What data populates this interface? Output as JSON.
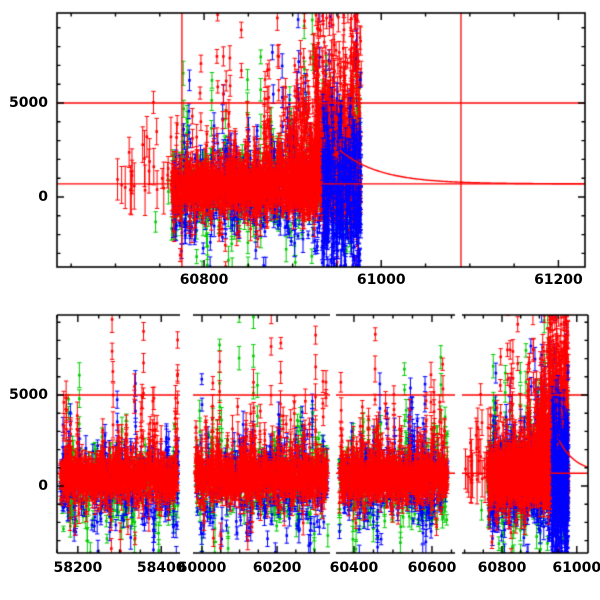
{
  "figure": {
    "background": "#ffffff",
    "frame_color": "#000000",
    "annotation_color": "#ff0000",
    "title": ""
  },
  "series": [
    {
      "name": "band-red",
      "color": "#ff0000",
      "marker": "square-with-errorbar"
    },
    {
      "name": "band-green",
      "color": "#00cc00",
      "marker": "square-with-errorbar"
    },
    {
      "name": "band-blue",
      "color": "#0000ff",
      "marker": "square-with-errorbar"
    }
  ],
  "chart_data": [
    {
      "id": "top-panel",
      "type": "scatter",
      "title": "",
      "xlabel": "",
      "ylabel": "",
      "x_range": [
        60634,
        61230
      ],
      "y_range": [
        -3723,
        9787
      ],
      "x_major_ticks": [
        {
          "value": 60800,
          "label": "60800"
        },
        {
          "value": 61000,
          "label": "61000"
        },
        {
          "value": 61200,
          "label": "61200"
        }
      ],
      "x_minor_step": 50,
      "y_major_ticks": [
        {
          "value": 0,
          "label": "0"
        },
        {
          "value": 5000,
          "label": "5000"
        }
      ],
      "y_minor_step": 1000,
      "h_lines": [
        5000,
        700
      ],
      "v_lines": [
        60775,
        61090
      ],
      "model_curve": {
        "x_start": 60953,
        "y_start": 2500,
        "asymptote": 700,
        "tau": 45,
        "x_end": 61230
      },
      "data_extent": {
        "x_min": 60700,
        "x_max": 60977
      },
      "grid": false,
      "legend": "none"
    },
    {
      "id": "bottom-panel",
      "type": "scatter",
      "title": "",
      "xlabel": "",
      "ylabel": "",
      "y_range": [
        -3681,
        9396
      ],
      "y_major_ticks": [
        {
          "value": 0,
          "label": "0"
        },
        {
          "value": 5000,
          "label": "5000"
        }
      ],
      "y_minor_step": 1000,
      "x_minor_step": 50,
      "h_lines": [
        5000,
        700
      ],
      "model_curve": {
        "x_start": 60953,
        "y_start": 2500,
        "asymptote": 700,
        "tau": 45,
        "x_end": 61030
      },
      "sub_panels": [
        {
          "x_range": [
            58150,
            58445
          ],
          "x_major_ticks": [
            {
              "value": 58200,
              "label": "58200"
            },
            {
              "value": 58400,
              "label": "58400"
            }
          ],
          "dataset": "epoch1"
        },
        {
          "x_range": [
            59976,
            60341
          ],
          "x_major_ticks": [
            {
              "value": 60000,
              "label": "60000"
            },
            {
              "value": 60200,
              "label": "60200"
            }
          ],
          "dataset": "epoch2"
        },
        {
          "x_range": [
            60354,
            60659
          ],
          "x_major_ticks": [
            {
              "value": 60400,
              "label": "60400"
            },
            {
              "value": 60600,
              "label": "60600"
            }
          ],
          "dataset": "epoch3"
        },
        {
          "x_range": [
            60693,
            61030
          ],
          "x_major_ticks": [
            {
              "value": 60800,
              "label": "60800"
            },
            {
              "value": 61000,
              "label": "61000"
            }
          ],
          "dataset": "recent"
        }
      ],
      "grid": false,
      "legend": "none"
    }
  ],
  "noise_model": {
    "comment": "Dense noisy light-curve clouds (3 colour bands with error bars); statistical description used to regenerate the point clouds deterministically.",
    "seed": 42,
    "datasets": {
      "recent": {
        "x_min": 60763,
        "x_max": 60977,
        "sparse_lead": {
          "x_min": 60700,
          "x_max": 60763,
          "n_red": 24,
          "y_min": 100,
          "y_max": 5300,
          "n_green": 6,
          "green_y_mean": -900,
          "green_y_sigma": 900
        },
        "red": {
          "n": 1650,
          "mean": 560,
          "sigma": 620,
          "p_up": 0.045,
          "amp0": 1800,
          "amp_scale": 2000,
          "amp_cap": 9500,
          "p_dn": 0.012,
          "dn0": 800,
          "dn_scale": 1000,
          "flare_x": 60860,
          "flare_boost": 7
        },
        "green": {
          "n": 540,
          "mean": 250,
          "sigma": 950,
          "p_up": 0.05,
          "amp0": 2000,
          "amp_scale": 1700,
          "amp_cap": 9400,
          "p_dn": 0.05,
          "dn0": 1000,
          "dn_scale": 1300,
          "flare_x": 60860,
          "flare_boost": 2
        },
        "blue": {
          "n": 560,
          "mean": 250,
          "sigma": 1000,
          "p_up": 0.05,
          "amp0": 2000,
          "amp_scale": 1700,
          "amp_cap": 9400,
          "p_dn": 0.05,
          "dn0": 1000,
          "dn_scale": 1300,
          "flare_x": 60860,
          "flare_boost": 2.5
        },
        "red_flare_extra": {
          "n": 300,
          "x_min": 60912,
          "x_max": 60974,
          "mean": 2800,
          "sigma": 2300,
          "y_min": -500,
          "y_max": 9600
        },
        "blue_wall": {
          "n": 340,
          "x_min": 60933,
          "x_max": 60977,
          "mean": 300,
          "sigma": 2200,
          "y_min": -3650,
          "y_max": 7200
        }
      },
      "epoch1": {
        "x_min": 58158,
        "x_max": 58440,
        "red": {
          "n": 900,
          "mean": 430,
          "sigma": 580,
          "p_up": 0.04,
          "amp0": 1500,
          "amp_scale": 1800,
          "amp_cap": 9200,
          "p_dn": 0.012,
          "dn0": 800,
          "dn_scale": 1000
        },
        "green": {
          "n": 300,
          "mean": 120,
          "sigma": 950,
          "p_up": 0.045,
          "amp0": 1600,
          "amp_scale": 1600,
          "amp_cap": 8800,
          "p_dn": 0.05,
          "dn0": 1000,
          "dn_scale": 1300
        },
        "blue": {
          "n": 300,
          "mean": 150,
          "sigma": 1000,
          "p_up": 0.045,
          "amp0": 1600,
          "amp_scale": 1600,
          "amp_cap": 8800,
          "p_dn": 0.05,
          "dn0": 1000,
          "dn_scale": 1300
        }
      },
      "epoch2": {
        "x_min": 59983,
        "x_max": 60335,
        "red": {
          "n": 1000,
          "mean": 500,
          "sigma": 620,
          "p_up": 0.05,
          "amp0": 1800,
          "amp_scale": 2000,
          "amp_cap": 9500,
          "p_dn": 0.012,
          "dn0": 800,
          "dn_scale": 1000
        },
        "green": {
          "n": 330,
          "mean": 150,
          "sigma": 980,
          "p_up": 0.05,
          "amp0": 1800,
          "amp_scale": 1700,
          "amp_cap": 9200,
          "p_dn": 0.05,
          "dn0": 1000,
          "dn_scale": 1300
        },
        "blue": {
          "n": 330,
          "mean": 150,
          "sigma": 1050,
          "p_up": 0.05,
          "amp0": 1800,
          "amp_scale": 1700,
          "amp_cap": 9200,
          "p_dn": 0.05,
          "dn0": 1000,
          "dn_scale": 1300
        }
      },
      "epoch3": {
        "x_min": 60362,
        "x_max": 60640,
        "red": {
          "n": 920,
          "mean": 480,
          "sigma": 600,
          "p_up": 0.05,
          "amp0": 1800,
          "amp_scale": 2000,
          "amp_cap": 9400,
          "p_dn": 0.012,
          "dn0": 800,
          "dn_scale": 1000
        },
        "green": {
          "n": 300,
          "mean": 140,
          "sigma": 960,
          "p_up": 0.05,
          "amp0": 1800,
          "amp_scale": 1700,
          "amp_cap": 9000,
          "p_dn": 0.05,
          "dn0": 1000,
          "dn_scale": 1300
        },
        "blue": {
          "n": 310,
          "mean": 150,
          "sigma": 1020,
          "p_up": 0.05,
          "amp0": 1800,
          "amp_scale": 1700,
          "amp_cap": 9000,
          "p_dn": 0.05,
          "dn0": 1000,
          "dn_scale": 1300
        }
      }
    }
  }
}
